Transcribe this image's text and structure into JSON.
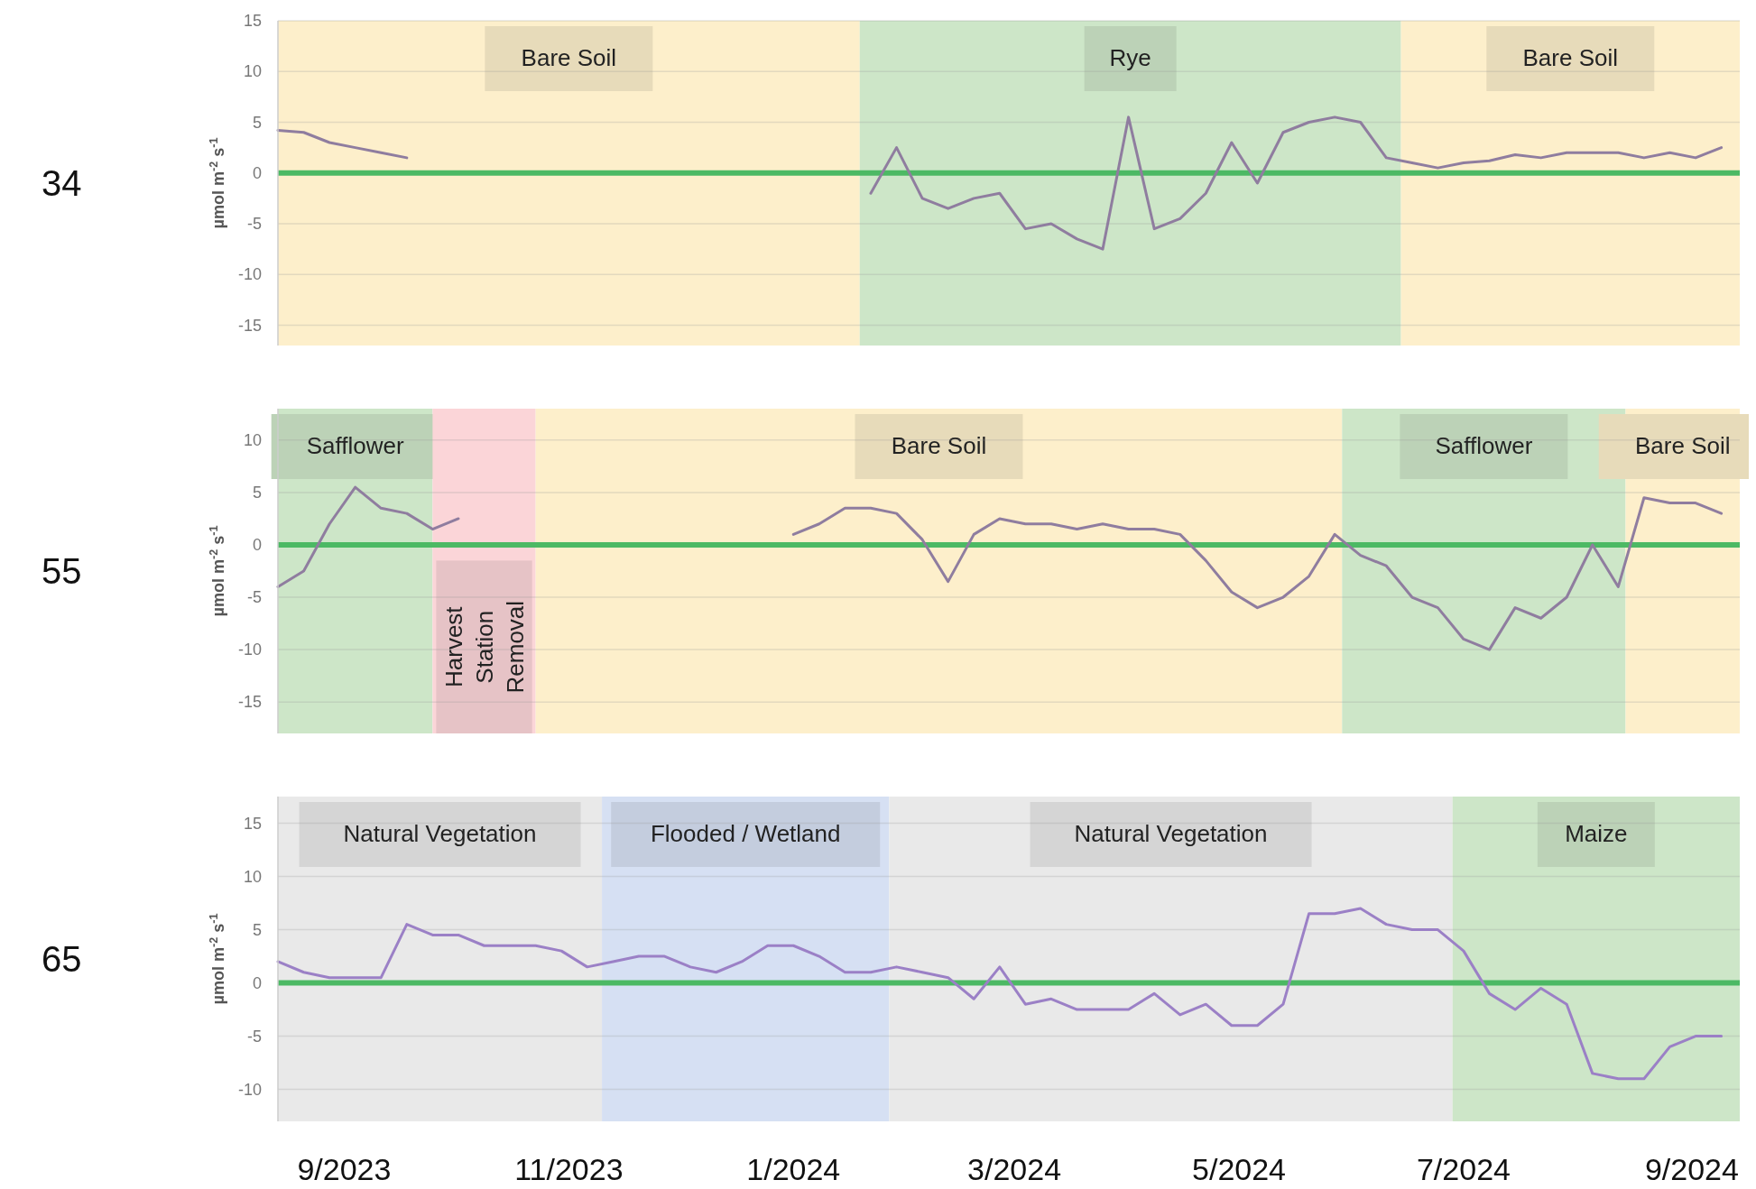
{
  "chart_data": [
    {
      "type": "line",
      "title": "34",
      "ylabel": "µmol m$^{-2}$ s$^{-1}$",
      "xlim": [
        "2023-08-14",
        "2024-09-14"
      ],
      "ylim": [
        -17,
        15
      ],
      "yticks": [
        -15,
        -10,
        -5,
        0,
        5,
        10,
        15
      ],
      "grid": "y",
      "tick_labels": "y",
      "x": [
        "2023-08-14",
        "2023-08-21",
        "2023-08-28",
        "2023-09-04",
        "2023-09-11",
        "2023-09-18",
        "2023-09-25",
        "2023-10-02",
        "2023-10-09",
        "2023-10-16",
        "2023-10-23",
        "2023-10-30",
        "2023-11-06",
        "2023-11-13",
        "2023-11-20",
        "2023-11-27",
        "2023-12-04",
        "2023-12-11",
        "2023-12-18",
        "2023-12-25",
        "2024-01-01",
        "2024-01-08",
        "2024-01-15",
        "2024-01-22",
        "2024-01-29",
        "2024-02-05",
        "2024-02-12",
        "2024-02-19",
        "2024-02-26",
        "2024-03-04",
        "2024-03-11",
        "2024-03-18",
        "2024-03-25",
        "2024-04-01",
        "2024-04-08",
        "2024-04-15",
        "2024-04-22",
        "2024-04-29",
        "2024-05-06",
        "2024-05-13",
        "2024-05-20",
        "2024-05-27",
        "2024-06-03",
        "2024-06-10",
        "2024-06-17",
        "2024-06-24",
        "2024-07-01",
        "2024-07-08",
        "2024-07-15",
        "2024-07-22",
        "2024-07-29",
        "2024-08-05",
        "2024-08-12",
        "2024-08-19",
        "2024-08-26",
        "2024-09-02",
        "2024-09-09"
      ],
      "series": [
        {
          "color": "#8f7d9f",
          "values": [
            4.2,
            4.0,
            3.0,
            2.5,
            2.0,
            1.5,
            null,
            null,
            null,
            null,
            null,
            null,
            null,
            null,
            null,
            null,
            null,
            null,
            null,
            null,
            null,
            null,
            null,
            -2,
            2.5,
            -2.5,
            -3.5,
            -2.5,
            -2,
            -5.5,
            -5,
            -6.5,
            -7.5,
            5.5,
            -5.5,
            -4.5,
            -2,
            3,
            -1,
            4,
            5,
            5.5,
            5,
            1.5,
            1,
            0.5,
            1,
            1.2,
            1.8,
            1.5,
            2,
            2,
            2,
            1.5,
            2,
            1.5,
            2.5
          ]
        }
      ],
      "ref_lines": [
        {
          "axis": "y",
          "value": 0,
          "color": "#4cb964"
        }
      ],
      "bands": [
        {
          "axis": "x",
          "from": "2023-08-14",
          "to": "2024-01-19",
          "label": "Bare Soil",
          "color": "#fdefcb"
        },
        {
          "axis": "x",
          "from": "2024-01-19",
          "to": "2024-06-14",
          "label": "Rye",
          "color": "#cde6c8"
        },
        {
          "axis": "x",
          "from": "2024-06-14",
          "to": "2024-09-14",
          "label": "Bare Soil",
          "color": "#fdefcb"
        }
      ]
    },
    {
      "type": "line",
      "title": "55",
      "ylabel": "µmol m$^{-2}$ s$^{-1}$",
      "xlim": [
        "2023-08-14",
        "2024-09-14"
      ],
      "ylim": [
        -18,
        13
      ],
      "yticks": [
        -15,
        -10,
        -5,
        0,
        5,
        10
      ],
      "grid": "y",
      "tick_labels": "y",
      "x": [
        "2023-08-14",
        "2023-08-21",
        "2023-08-28",
        "2023-09-04",
        "2023-09-11",
        "2023-09-18",
        "2023-09-25",
        "2023-10-02",
        "2023-10-09",
        "2023-10-16",
        "2023-10-23",
        "2023-10-30",
        "2023-11-06",
        "2023-11-13",
        "2023-11-20",
        "2023-11-27",
        "2023-12-04",
        "2023-12-11",
        "2023-12-18",
        "2023-12-25",
        "2024-01-01",
        "2024-01-08",
        "2024-01-15",
        "2024-01-22",
        "2024-01-29",
        "2024-02-05",
        "2024-02-12",
        "2024-02-19",
        "2024-02-26",
        "2024-03-04",
        "2024-03-11",
        "2024-03-18",
        "2024-03-25",
        "2024-04-01",
        "2024-04-08",
        "2024-04-15",
        "2024-04-22",
        "2024-04-29",
        "2024-05-06",
        "2024-05-13",
        "2024-05-20",
        "2024-05-27",
        "2024-06-03",
        "2024-06-10",
        "2024-06-17",
        "2024-06-24",
        "2024-07-01",
        "2024-07-08",
        "2024-07-15",
        "2024-07-22",
        "2024-07-29",
        "2024-08-05",
        "2024-08-12",
        "2024-08-19",
        "2024-08-26",
        "2024-09-02",
        "2024-09-09"
      ],
      "series": [
        {
          "color": "#8f7d9f",
          "values": [
            -4,
            -2.5,
            2,
            5.5,
            3.5,
            3,
            1.5,
            2.5,
            null,
            null,
            null,
            null,
            null,
            null,
            null,
            null,
            null,
            null,
            null,
            null,
            1,
            2,
            3.5,
            3.5,
            3,
            0.5,
            -3.5,
            1,
            2.5,
            2,
            2,
            1.5,
            2,
            1.5,
            1.5,
            1,
            -1.5,
            -4.5,
            -6,
            -5,
            -3,
            1,
            -1,
            -2,
            -5,
            -6,
            -9,
            -10,
            -6,
            -7,
            -5,
            0,
            -4,
            4.5,
            4,
            4,
            3
          ]
        }
      ],
      "ref_lines": [
        {
          "axis": "y",
          "value": 0,
          "color": "#4cb964"
        }
      ],
      "bands": [
        {
          "axis": "x",
          "from": "2023-08-14",
          "to": "2023-09-25",
          "label": "Safflower",
          "color": "#cde6c8"
        },
        {
          "axis": "x",
          "from": "2023-09-25",
          "to": "2023-10-23",
          "label": "Harvest Station Removal",
          "color": "#fbd5d8"
        },
        {
          "axis": "x",
          "from": "2023-10-23",
          "to": "2024-05-29",
          "label": "Bare Soil",
          "color": "#fdefcb"
        },
        {
          "axis": "x",
          "from": "2024-05-29",
          "to": "2024-08-14",
          "label": "Safflower",
          "color": "#cde6c8"
        },
        {
          "axis": "x",
          "from": "2024-08-14",
          "to": "2024-09-14",
          "label": "Bare Soil",
          "color": "#fdefcb"
        }
      ]
    },
    {
      "type": "line",
      "title": "65",
      "ylabel": "µmol m$^{-2}$ s$^{-1}$",
      "xlim": [
        "2023-08-14",
        "2024-09-14"
      ],
      "ylim": [
        -13,
        17.5
      ],
      "yticks": [
        -10,
        -5,
        0,
        5,
        10,
        15
      ],
      "grid": "y",
      "xticks": [
        {
          "value": "2023-09-01",
          "label": "9/2023"
        },
        {
          "value": "2023-11-01",
          "label": "11/2023"
        },
        {
          "value": "2024-01-01",
          "label": "1/2024"
        },
        {
          "value": "2024-03-01",
          "label": "3/2024"
        },
        {
          "value": "2024-05-01",
          "label": "5/2024"
        },
        {
          "value": "2024-07-01",
          "label": "7/2024"
        },
        {
          "value": "2024-09-01",
          "label": "9/2024"
        }
      ],
      "x": [
        "2023-08-14",
        "2023-08-21",
        "2023-08-28",
        "2023-09-04",
        "2023-09-11",
        "2023-09-18",
        "2023-09-25",
        "2023-10-02",
        "2023-10-09",
        "2023-10-16",
        "2023-10-23",
        "2023-10-30",
        "2023-11-06",
        "2023-11-13",
        "2023-11-20",
        "2023-11-27",
        "2023-12-04",
        "2023-12-11",
        "2023-12-18",
        "2023-12-25",
        "2024-01-01",
        "2024-01-08",
        "2024-01-15",
        "2024-01-22",
        "2024-01-29",
        "2024-02-05",
        "2024-02-12",
        "2024-02-19",
        "2024-02-26",
        "2024-03-04",
        "2024-03-11",
        "2024-03-18",
        "2024-03-25",
        "2024-04-01",
        "2024-04-08",
        "2024-04-15",
        "2024-04-22",
        "2024-04-29",
        "2024-05-06",
        "2024-05-13",
        "2024-05-20",
        "2024-05-27",
        "2024-06-03",
        "2024-06-10",
        "2024-06-17",
        "2024-06-24",
        "2024-07-01",
        "2024-07-08",
        "2024-07-15",
        "2024-07-22",
        "2024-07-29",
        "2024-08-05",
        "2024-08-12",
        "2024-08-19",
        "2024-08-26",
        "2024-09-02",
        "2024-09-09"
      ],
      "series": [
        {
          "color": "#9b80c6",
          "values": [
            2,
            1,
            0.5,
            0.5,
            0.5,
            5.5,
            4.5,
            4.5,
            3.5,
            3.5,
            3.5,
            3,
            1.5,
            2,
            2.5,
            2.5,
            1.5,
            1,
            2,
            3.5,
            3.5,
            2.5,
            1,
            1,
            1.5,
            1,
            0.5,
            -1.5,
            1.5,
            -2,
            -1.5,
            -2.5,
            -2.5,
            -2.5,
            -1,
            -3,
            -2,
            -4,
            -4,
            -2,
            6.5,
            6.5,
            7,
            5.5,
            5,
            5,
            3,
            -1,
            -2.5,
            -0.5,
            -2,
            -8.5,
            -9,
            -9,
            -6,
            -5,
            -5
          ]
        }
      ],
      "ref_lines": [
        {
          "axis": "y",
          "value": 0,
          "color": "#4cb964"
        }
      ],
      "bands": [
        {
          "axis": "x",
          "from": "2023-08-14",
          "to": "2023-11-10",
          "label": "Natural Vegetation",
          "color": "#e9e9e9"
        },
        {
          "axis": "x",
          "from": "2023-11-10",
          "to": "2024-01-27",
          "label": "Flooded / Wetland",
          "color": "#d6e0f3"
        },
        {
          "axis": "x",
          "from": "2024-01-27",
          "to": "2024-06-28",
          "label": "Natural Vegetation",
          "color": "#e9e9e9"
        },
        {
          "axis": "x",
          "from": "2024-06-28",
          "to": "2024-09-14",
          "label": "Maize",
          "color": "#cde6c8"
        }
      ]
    }
  ]
}
